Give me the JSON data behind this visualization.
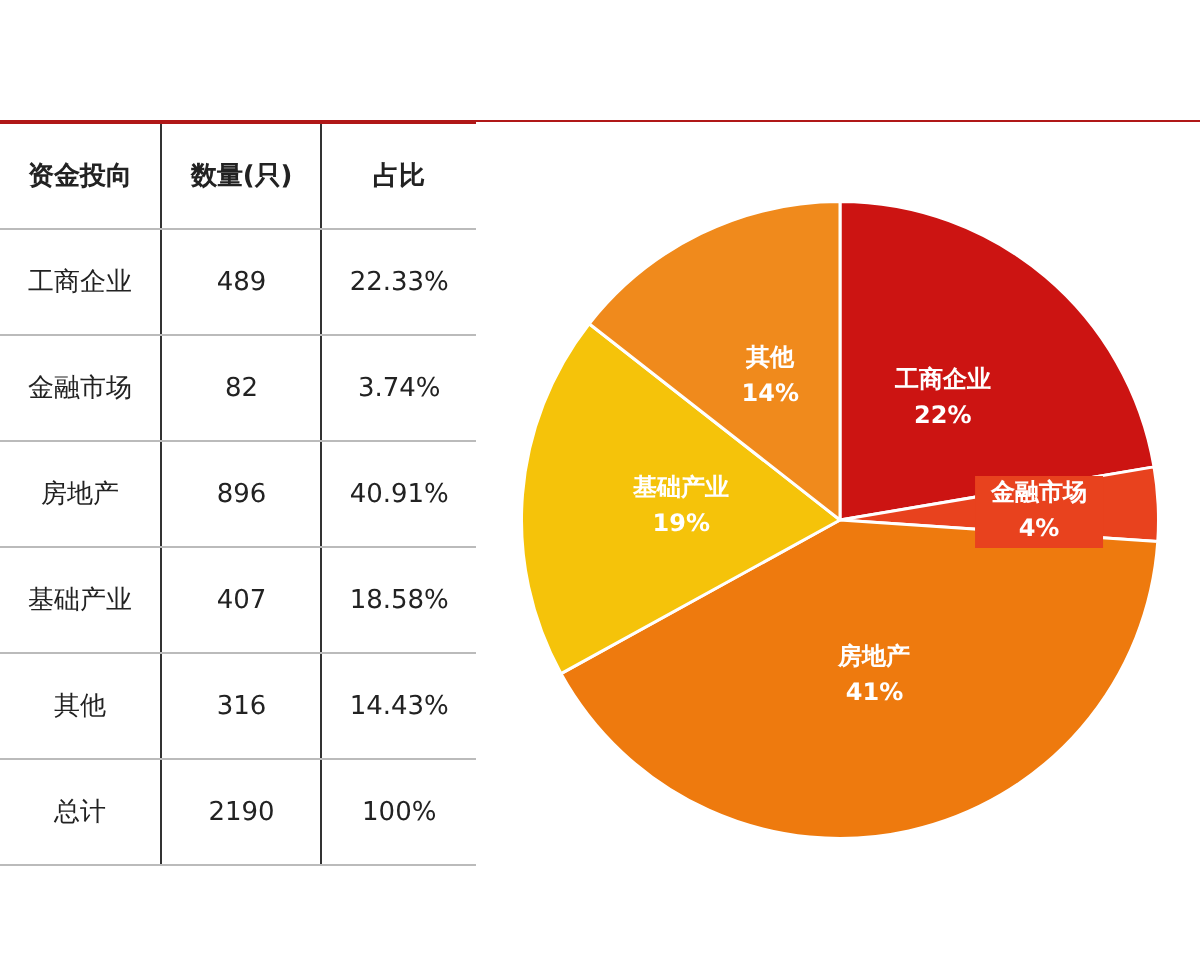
{
  "chart_data": [
    {
      "type": "other",
      "ylabel": "资金投向",
      "categories": [
        "工商企业",
        "金融市场",
        "房地产",
        "基础产业",
        "其他"
      ],
      "data_labels": true,
      "series": [
        {
          "name": "数量(只)",
          "values": [
            489,
            82,
            896,
            407,
            316
          ]
        },
        {
          "name": "占比",
          "values": [
            22.33,
            3.74,
            40.91,
            18.58,
            14.43
          ],
          "value_labels": [
            "22.33%",
            "3.74%",
            "40.91%",
            "18.58%",
            "14.43%"
          ]
        }
      ],
      "annotations": [
        "总计"
      ],
      "totals": [
        "2190",
        "100%"
      ]
    },
    {
      "type": "pie",
      "categories": [
        "工商企业",
        "金融市场",
        "房地产",
        "基础产业",
        "其他"
      ],
      "values": [
        22.33,
        3.74,
        40.91,
        18.58,
        14.43
      ],
      "colors": [
        "#cc1412",
        "#e8421e",
        "#ee7a0e",
        "#f5c30a",
        "#f08a1c"
      ],
      "value_labels": [
        "22%",
        "4%",
        "41%",
        "19%",
        "14%"
      ],
      "legend": false
    }
  ]
}
